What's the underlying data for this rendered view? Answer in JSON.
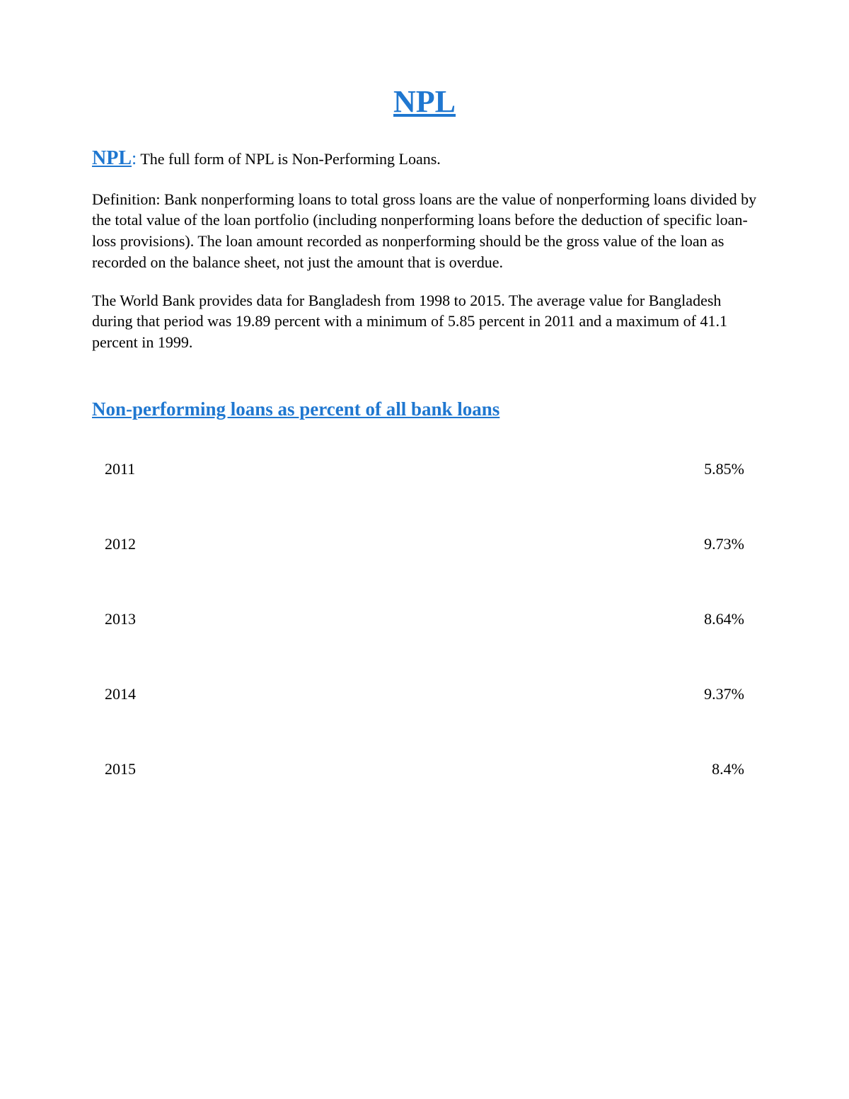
{
  "title": "NPL",
  "intro": {
    "label": "NPL",
    "colon": ":",
    "text": " The full form of NPL is Non-Performing Loans."
  },
  "definition": "Definition: Bank nonperforming loans to total gross loans are the value of nonperforming loans divided by the total value of the loan portfolio (including nonperforming loans before the deduction of specific loan-loss provisions). The loan amount recorded as nonperforming should be the gross value of the loan as recorded on the balance sheet, not just the amount that is overdue.",
  "worldbank": "The World Bank provides data for Bangladesh from 1998 to 2015. The average value for Bangladesh during that period was 19.89 percent with a minimum of 5.85 percent in 2011 and a maximum of 41.1 percent in 1999.",
  "section_heading": "Non-performing loans as percent of all bank loans",
  "table": {
    "rows": [
      {
        "year": "2011",
        "value": "5.85%"
      },
      {
        "year": "2012",
        "value": "9.73%"
      },
      {
        "year": "2013",
        "value": "8.64%"
      },
      {
        "year": "2014",
        "value": "9.37%"
      },
      {
        "year": "2015",
        "value": "8.4%"
      }
    ]
  },
  "colors": {
    "link_blue": "#1f77d0",
    "text_black": "#000000",
    "background": "#ffffff"
  },
  "typography": {
    "body_fontsize": 22,
    "title_fontsize": 44,
    "heading_fontsize": 27,
    "npl_label_fontsize": 28,
    "font_family": "Times New Roman"
  }
}
